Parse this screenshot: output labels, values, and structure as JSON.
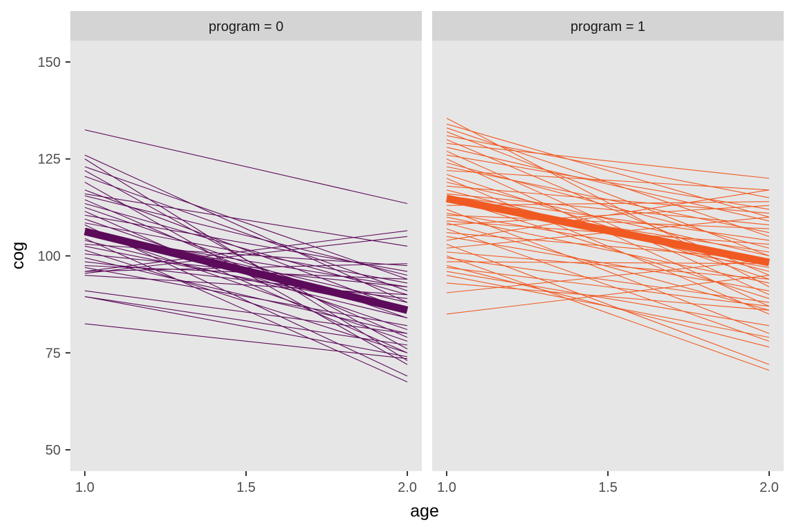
{
  "chart_data": {
    "type": "line",
    "title": "",
    "xlabel": "age",
    "ylabel": "cog",
    "xlim": [
      0.955,
      2.045
    ],
    "ylim": [
      44.5,
      155.5
    ],
    "xticks": [
      1.0,
      1.5,
      2.0
    ],
    "xtick_labels": [
      "1.0",
      "1.5",
      "2.0"
    ],
    "yticks": [
      50,
      75,
      100,
      125,
      150
    ],
    "ytick_labels": [
      "50",
      "75",
      "100",
      "125",
      "150"
    ],
    "grid": false,
    "panels": [
      {
        "label": "program = 0",
        "color": "#5c0a5a",
        "mean_line": {
          "start": 106.3,
          "end": 86.0
        },
        "individual_lines": [
          [
            132.5,
            113.5
          ],
          [
            126.0,
            88.0
          ],
          [
            125.0,
            73.0
          ],
          [
            123.0,
            94.0
          ],
          [
            122.0,
            76.0
          ],
          [
            120.5,
            91.0
          ],
          [
            119.0,
            72.0
          ],
          [
            117.0,
            86.0
          ],
          [
            116.0,
            102.5
          ],
          [
            115.5,
            95.0
          ],
          [
            114.5,
            79.0
          ],
          [
            113.5,
            90.0
          ],
          [
            112.5,
            84.0
          ],
          [
            111.5,
            75.0
          ],
          [
            110.5,
            96.0
          ],
          [
            109.5,
            81.0
          ],
          [
            108.5,
            93.0
          ],
          [
            108.0,
            69.0
          ],
          [
            107.0,
            88.0
          ],
          [
            106.5,
            78.0
          ],
          [
            105.5,
            92.0
          ],
          [
            104.5,
            67.5
          ],
          [
            104.0,
            84.0
          ],
          [
            103.0,
            97.5
          ],
          [
            102.5,
            86.0
          ],
          [
            101.5,
            75.0
          ],
          [
            100.5,
            92.0
          ],
          [
            99.5,
            80.0
          ],
          [
            98.5,
            89.0
          ],
          [
            97.5,
            94.0
          ],
          [
            97.0,
            82.0
          ],
          [
            96.0,
            98.0
          ],
          [
            96.0,
            106.5
          ],
          [
            95.5,
            105.0
          ],
          [
            95.0,
            90.0
          ],
          [
            91.0,
            80.0
          ],
          [
            89.5,
            74.0
          ],
          [
            89.5,
            77.0
          ],
          [
            82.5,
            73.5
          ]
        ]
      },
      {
        "label": "program = 1",
        "color": "#f05a22",
        "mean_line": {
          "start": 114.8,
          "end": 98.3
        },
        "individual_lines": [
          [
            135.5,
            92.0
          ],
          [
            134.0,
            110.0
          ],
          [
            133.0,
            105.0
          ],
          [
            132.0,
            100.0
          ],
          [
            131.0,
            115.0
          ],
          [
            130.0,
            95.0
          ],
          [
            129.0,
            120.0
          ],
          [
            128.0,
            109.0
          ],
          [
            127.0,
            90.0
          ],
          [
            126.0,
            112.0
          ],
          [
            125.0,
            87.0
          ],
          [
            124.0,
            102.0
          ],
          [
            123.0,
            106.0
          ],
          [
            122.0,
            117.0
          ],
          [
            121.0,
            94.0
          ],
          [
            120.0,
            85.0
          ],
          [
            119.0,
            100.0
          ],
          [
            118.0,
            111.0
          ],
          [
            117.0,
            96.0
          ],
          [
            116.0,
            108.0
          ],
          [
            115.5,
            104.0
          ],
          [
            115.0,
            89.0
          ],
          [
            114.0,
            101.0
          ],
          [
            113.0,
            114.0
          ],
          [
            112.0,
            80.0
          ],
          [
            111.0,
            97.0
          ],
          [
            110.5,
            107.0
          ],
          [
            110.0,
            93.0
          ],
          [
            109.0,
            103.0
          ],
          [
            108.5,
            86.0
          ],
          [
            108.0,
            113.0
          ],
          [
            107.0,
            78.0
          ],
          [
            106.0,
            99.0
          ],
          [
            105.0,
            91.0
          ],
          [
            104.0,
            117.0
          ],
          [
            103.0,
            72.0
          ],
          [
            102.0,
            110.0
          ],
          [
            101.0,
            94.0
          ],
          [
            100.0,
            70.5
          ],
          [
            99.5,
            88.0
          ],
          [
            98.5,
            98.0
          ],
          [
            97.5,
            76.5
          ],
          [
            97.0,
            87.0
          ],
          [
            96.0,
            82.0
          ],
          [
            95.0,
            79.0
          ],
          [
            93.0,
            86.0
          ],
          [
            90.5,
            99.0
          ],
          [
            85.0,
            95.0
          ]
        ]
      }
    ]
  }
}
